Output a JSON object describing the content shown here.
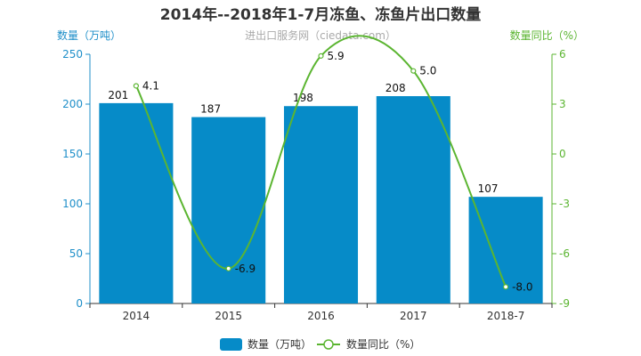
{
  "chart_data": {
    "type": "bar",
    "title": "2014年--2018年1-7月冻鱼、冻鱼片出口数量",
    "subtitle": "进出口服务网（ciedata.com）",
    "categories": [
      "2014",
      "2015",
      "2016",
      "2017",
      "2018-7"
    ],
    "series": [
      {
        "name": "数量（万吨）",
        "type": "bar",
        "axis": "left",
        "values": [
          201,
          187,
          198,
          208,
          107
        ]
      },
      {
        "name": "数量同比（%）",
        "type": "line",
        "axis": "right",
        "values": [
          4.1,
          -6.9,
          5.9,
          5.0,
          -8.0
        ]
      }
    ],
    "left_axis": {
      "label": "数量（万吨）",
      "range": [
        0,
        250
      ],
      "ticks": [
        0,
        50,
        100,
        150,
        200,
        250
      ]
    },
    "right_axis": {
      "label": "数量同比（%）",
      "range": [
        -9,
        6
      ],
      "ticks": [
        -9,
        -6,
        -3,
        0,
        3,
        6
      ]
    },
    "legend_position": "bottom",
    "grid": false,
    "colors": {
      "bar": "#068bc8",
      "line": "#5bb531",
      "left_axis": "#1f8fc9",
      "right_axis": "#5bb531"
    }
  }
}
